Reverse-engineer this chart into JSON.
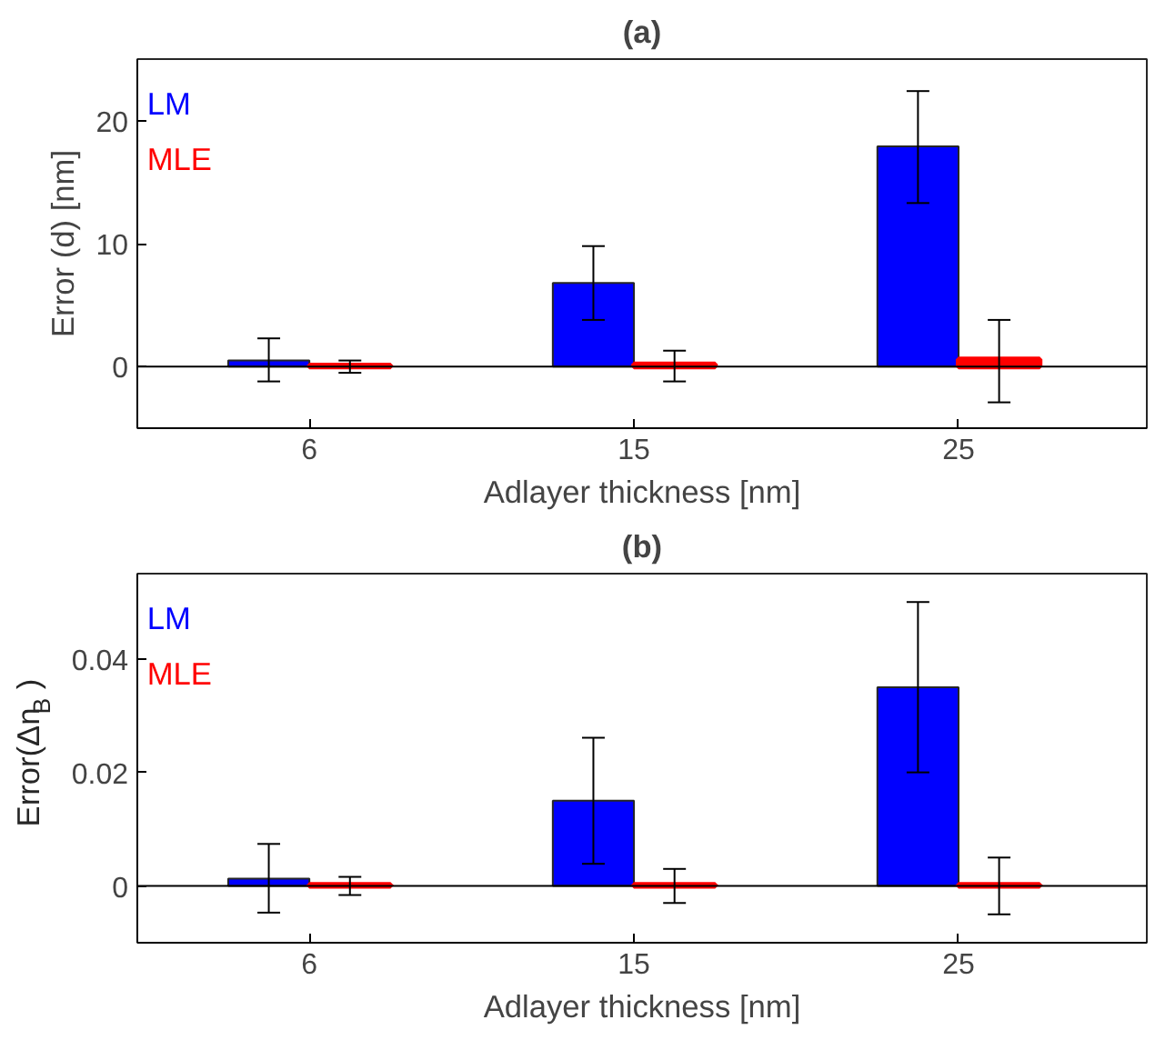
{
  "chart_data": [
    {
      "type": "bar",
      "title": "(a)",
      "xlabel": "Adlayer thickness [nm]",
      "ylabel": "Error (d) [nm]",
      "categories": [
        "6",
        "15",
        "25"
      ],
      "ylim": [
        -5,
        25
      ],
      "yticks": [
        0,
        10,
        20
      ],
      "legend": "top left",
      "ref_lines": [
        {
          "axis": "y",
          "value": 0
        }
      ],
      "series": [
        {
          "name": "LM",
          "color": "#0000ff",
          "values": [
            0.5,
            6.8,
            17.9
          ],
          "errors": [
            [
              -1.2,
              2.3
            ],
            [
              3.8,
              9.8
            ],
            [
              13.3,
              22.4
            ]
          ]
        },
        {
          "name": "MLE",
          "color": "#ff0000",
          "values": [
            0.1,
            0.2,
            0.6
          ],
          "errors": [
            [
              -0.5,
              0.5
            ],
            [
              -1.2,
              1.3
            ],
            [
              -2.9,
              3.8
            ]
          ]
        }
      ]
    },
    {
      "type": "bar",
      "title": "(b)",
      "xlabel": "Adlayer thickness [nm]",
      "ylabel": "Error(Δn$_{B}$)",
      "categories": [
        "6",
        "15",
        "25"
      ],
      "ylim": [
        -0.01,
        0.055
      ],
      "yticks": [
        0,
        0.02,
        0.04
      ],
      "legend": "top left",
      "ref_lines": [
        {
          "axis": "y",
          "value": 0
        }
      ],
      "series": [
        {
          "name": "LM",
          "color": "#0000ff",
          "values": [
            0.0013,
            0.015,
            0.035
          ],
          "errors": [
            [
              -0.0047,
              0.0074
            ],
            [
              0.0039,
              0.0261
            ],
            [
              0.02,
              0.05
            ]
          ]
        },
        {
          "name": "MLE",
          "color": "#ff0000",
          "values": [
            0.0002,
            0.0002,
            0.0002
          ],
          "errors": [
            [
              -0.0016,
              0.0016
            ],
            [
              -0.003,
              0.003
            ],
            [
              -0.005,
              0.005
            ]
          ]
        }
      ]
    }
  ]
}
